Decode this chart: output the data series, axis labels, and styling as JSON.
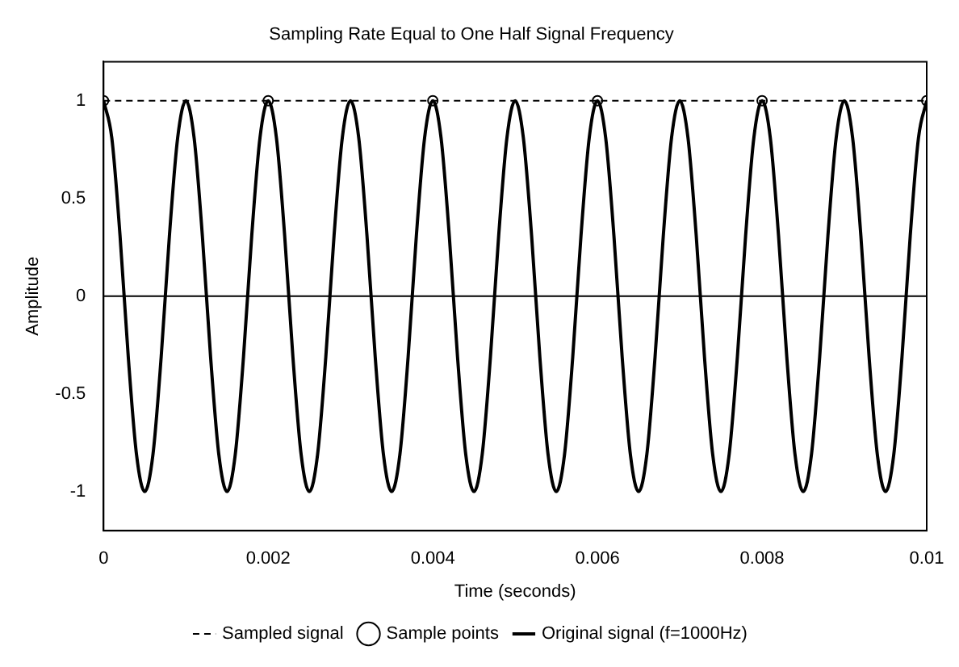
{
  "chart_data": {
    "type": "line",
    "title": "Sampling Rate Equal to One Half Signal Frequency",
    "xlabel": "Time (seconds)",
    "ylabel": "Amplitude",
    "xlim": [
      0,
      0.01
    ],
    "xticks": [
      0,
      0.002,
      0.004,
      0.006,
      0.008,
      0.01
    ],
    "ylim": [
      -1.2,
      1.2
    ],
    "yticks": [
      -1,
      -0.5,
      0,
      0.5,
      1
    ],
    "grid": false,
    "legend": "bottom",
    "ref_lines": [
      {
        "axis": "y",
        "value": 0,
        "color": "#000000",
        "line_style": "solid"
      }
    ],
    "series": [
      {
        "name": "Sampled signal",
        "type": "line",
        "color": "#000000",
        "line_style": "dashed",
        "marker": "none",
        "x": [
          0,
          0.002,
          0.004,
          0.006,
          0.008,
          0.01
        ],
        "values": [
          1,
          1,
          1,
          1,
          1,
          1
        ]
      },
      {
        "name": "Sample points",
        "type": "scatter",
        "color": "#000000",
        "marker": "circle",
        "x": [
          0,
          0.002,
          0.004,
          0.006,
          0.008,
          0.01
        ],
        "values": [
          1,
          1,
          1,
          1,
          1,
          1
        ]
      },
      {
        "name": "Original signal (f=1000Hz)",
        "type": "line",
        "color": "#000000",
        "line_style": "solid",
        "marker": "none",
        "x": [
          0,
          0.0001,
          0.0002,
          0.0003,
          0.0004,
          0.0005,
          0.0006,
          0.0007,
          0.0008,
          0.0009,
          0.001,
          0.0011,
          0.0012,
          0.0013,
          0.0014,
          0.0015,
          0.0016,
          0.0017,
          0.0018,
          0.0019,
          0.002,
          0.0021,
          0.0022,
          0.0023,
          0.0024,
          0.0025,
          0.0026,
          0.0027,
          0.0028,
          0.0029,
          0.003,
          0.0031,
          0.0032,
          0.0033,
          0.0034,
          0.0035,
          0.0036,
          0.0037,
          0.0038,
          0.0039,
          0.004,
          0.0041,
          0.0042,
          0.0043,
          0.0044,
          0.0045,
          0.0046,
          0.0047,
          0.0048,
          0.0049,
          0.005,
          0.0051,
          0.0052,
          0.0053,
          0.0054,
          0.0055,
          0.0056,
          0.0057,
          0.0058,
          0.0059,
          0.006,
          0.0061,
          0.0062,
          0.0063,
          0.0064,
          0.0065,
          0.0066,
          0.0067,
          0.0068,
          0.0069,
          0.007,
          0.0071,
          0.0072,
          0.0073,
          0.0074,
          0.0075,
          0.0076,
          0.0077,
          0.0078,
          0.0079,
          0.008,
          0.0081,
          0.0082,
          0.0083,
          0.0084,
          0.0085,
          0.0086,
          0.0087,
          0.0088,
          0.0089,
          0.009,
          0.0091,
          0.0092,
          0.0093,
          0.0094,
          0.0095,
          0.0096,
          0.0097,
          0.0098,
          0.0099,
          0.01
        ],
        "values": [
          1,
          0.81,
          0.31,
          -0.31,
          -0.81,
          -1,
          -0.81,
          -0.31,
          0.31,
          0.81,
          1,
          0.81,
          0.31,
          -0.31,
          -0.81,
          -1,
          -0.81,
          -0.31,
          0.31,
          0.81,
          1,
          0.81,
          0.31,
          -0.31,
          -0.81,
          -1,
          -0.81,
          -0.31,
          0.31,
          0.81,
          1,
          0.81,
          0.31,
          -0.31,
          -0.81,
          -1,
          -0.81,
          -0.31,
          0.31,
          0.81,
          1,
          0.81,
          0.31,
          -0.31,
          -0.81,
          -1,
          -0.81,
          -0.31,
          0.31,
          0.81,
          1,
          0.81,
          0.31,
          -0.31,
          -0.81,
          -1,
          -0.81,
          -0.31,
          0.31,
          0.81,
          1,
          0.81,
          0.31,
          -0.31,
          -0.81,
          -1,
          -0.81,
          -0.31,
          0.31,
          0.81,
          1,
          0.81,
          0.31,
          -0.31,
          -0.81,
          -1,
          -0.81,
          -0.31,
          0.31,
          0.81,
          1,
          0.81,
          0.31,
          -0.31,
          -0.81,
          -1,
          -0.81,
          -0.31,
          0.31,
          0.81,
          1,
          0.81,
          0.31,
          -0.31,
          -0.81,
          -1,
          -0.81,
          -0.31,
          0.31,
          0.81,
          1
        ]
      }
    ]
  }
}
